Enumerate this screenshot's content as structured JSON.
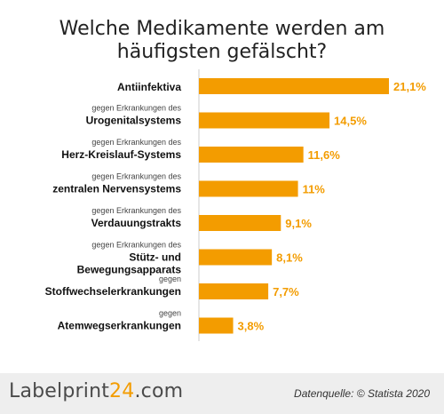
{
  "chart_data": {
    "type": "bar",
    "orientation": "horizontal",
    "title": "Welche Medikamente werden am häufigsten gefälscht?",
    "categories": [
      {
        "prefix": "",
        "label": "Antiinfektiva"
      },
      {
        "prefix": "gegen Erkrankungen des",
        "label": "Urogenitalsystems"
      },
      {
        "prefix": "gegen Erkrankungen des",
        "label": "Herz-Kreislauf-Systems"
      },
      {
        "prefix": "gegen Erkrankungen des",
        "label": "zentralen Nervensystems"
      },
      {
        "prefix": "gegen Erkrankungen des",
        "label": "Verdauungstrakts"
      },
      {
        "prefix": "gegen Erkrankungen des",
        "label": "Stütz- und Bewegungsapparats"
      },
      {
        "prefix": "gegen",
        "label": "Stoffwechselerkrankungen"
      },
      {
        "prefix": "gegen",
        "label": "Atemwegserkrankungen"
      }
    ],
    "values": [
      21.1,
      14.5,
      11.6,
      11,
      9.1,
      8.1,
      7.7,
      3.8
    ],
    "value_labels": [
      "21,1%",
      "14,5%",
      "11,6%",
      "11%",
      "9,1%",
      "8,1%",
      "7,7%",
      "3,8%"
    ],
    "unit": "%",
    "xlim": [
      0,
      21.1
    ],
    "bar_color": "#f39c00",
    "label_color": "#f39c00"
  },
  "footer": {
    "logo_main": "Labelprint",
    "logo_accent": "24",
    "logo_suffix": ".com",
    "source": "Datenquelle: © Statista 2020"
  }
}
